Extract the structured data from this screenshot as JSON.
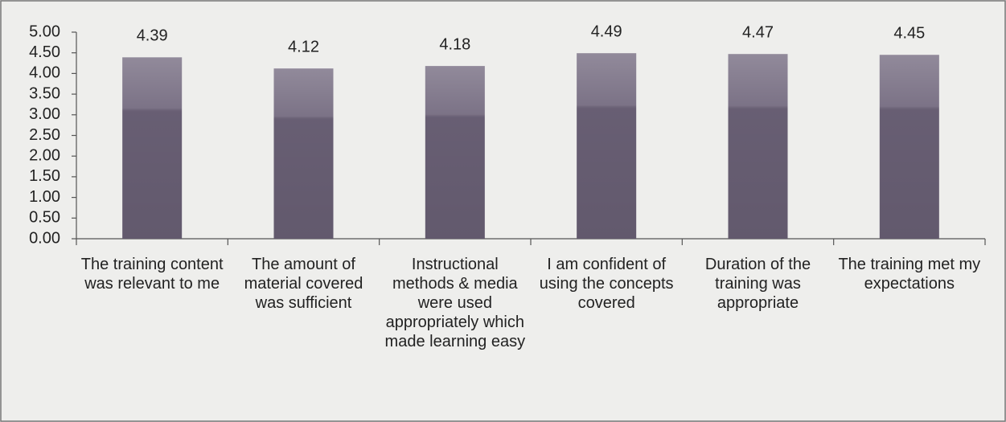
{
  "chart_data": {
    "type": "bar",
    "categories": [
      "The training content was relevant to me",
      "The amount of material covered was sufficient",
      "Instructional methods & media were used appropriately which made learning easy",
      "I am confident of using the concepts covered",
      "Duration of the training was appropriate",
      "The training met my expectations"
    ],
    "values": [
      4.39,
      4.12,
      4.18,
      4.49,
      4.47,
      4.45
    ],
    "color": "#6d6379",
    "ylim": [
      0,
      5
    ],
    "yticks": [
      {
        "value": 0,
        "label": "0.00"
      },
      {
        "value": 0.5,
        "label": "0.50"
      },
      {
        "value": 1,
        "label": "1.00"
      },
      {
        "value": 1.5,
        "label": "1.50"
      },
      {
        "value": 2,
        "label": "2.00"
      },
      {
        "value": 2.5,
        "label": "2.50"
      },
      {
        "value": 3,
        "label": "3.00"
      },
      {
        "value": 3.5,
        "label": "3.50"
      },
      {
        "value": 4,
        "label": "4.00"
      },
      {
        "value": 4.5,
        "label": "4.50"
      },
      {
        "value": 5,
        "label": "5.00"
      }
    ],
    "grid": false
  }
}
